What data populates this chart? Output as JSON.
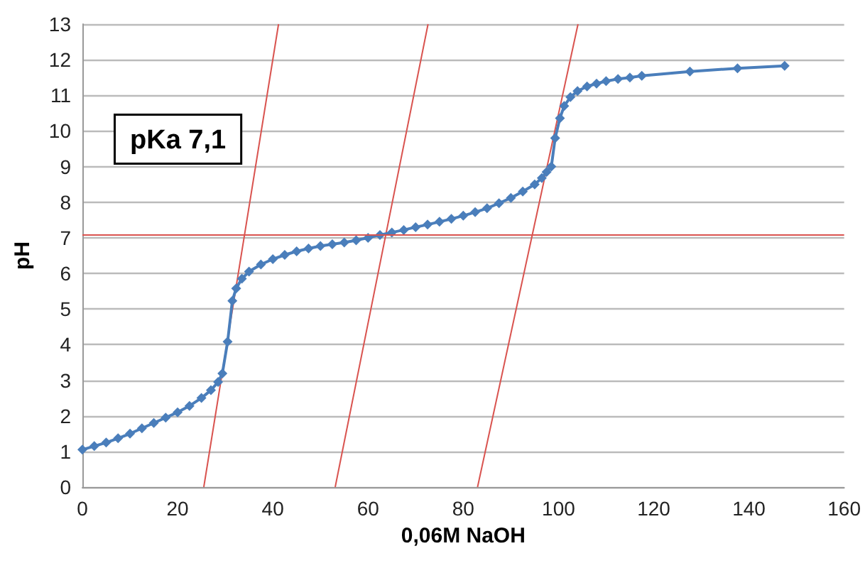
{
  "chart_data": {
    "type": "line",
    "xlabel": "0,06M NaOH",
    "ylabel": "pH",
    "annotations": [
      "pKa 7,1"
    ],
    "xlim": [
      0,
      160
    ],
    "xticks": [
      0,
      20,
      40,
      60,
      80,
      100,
      120,
      140,
      160
    ],
    "ylim": [
      0,
      13
    ],
    "yticks": [
      0,
      1,
      2,
      3,
      4,
      5,
      6,
      7,
      8,
      9,
      10,
      11,
      12,
      13
    ],
    "grid": "y",
    "marker": "diamond",
    "line_style": "solid",
    "series": [
      {
        "color": "#4a7ebb",
        "x": [
          0,
          2.5,
          5,
          7.5,
          10,
          12.5,
          15,
          17.5,
          20,
          22.5,
          25,
          27,
          28.5,
          29.4,
          30.5,
          31.5,
          32.3,
          33.5,
          35,
          37.5,
          40,
          42.5,
          45,
          47.5,
          50,
          52.5,
          55,
          57.5,
          60,
          62.5,
          65,
          67.5,
          70,
          72.5,
          75,
          77.5,
          80,
          82.5,
          85,
          87.5,
          90,
          92.5,
          95,
          96.5,
          97.5,
          98.5,
          99.3,
          100.3,
          101.2,
          102.5,
          104,
          106,
          108,
          110,
          112.5,
          115,
          117.5,
          127.6,
          137.6,
          147.5
        ],
        "values": [
          1.05,
          1.15,
          1.25,
          1.37,
          1.5,
          1.65,
          1.8,
          1.95,
          2.1,
          2.28,
          2.5,
          2.72,
          2.95,
          3.19,
          4.08,
          5.23,
          5.58,
          5.85,
          6.05,
          6.25,
          6.4,
          6.52,
          6.62,
          6.7,
          6.77,
          6.82,
          6.87,
          6.93,
          7.0,
          7.08,
          7.15,
          7.22,
          7.3,
          7.37,
          7.45,
          7.53,
          7.62,
          7.72,
          7.83,
          7.97,
          8.12,
          8.3,
          8.5,
          8.68,
          8.85,
          9.0,
          9.8,
          10.36,
          10.7,
          10.95,
          11.12,
          11.25,
          11.33,
          11.4,
          11.46,
          11.5,
          11.55,
          11.67,
          11.76,
          11.83
        ]
      },
      {
        "color": "#d9534f",
        "marker": "none",
        "x": [
          25.5,
          41.2
        ],
        "values": [
          0,
          13
        ]
      },
      {
        "color": "#d9534f",
        "marker": "none",
        "x": [
          53.1,
          72.6
        ],
        "values": [
          0,
          13
        ]
      },
      {
        "color": "#d9534f",
        "marker": "none",
        "x": [
          83.0,
          104.1
        ],
        "values": [
          0,
          13
        ]
      }
    ],
    "ref_lines": [
      {
        "axis": "y",
        "value": 7.1,
        "color": "#d9534f"
      }
    ]
  }
}
